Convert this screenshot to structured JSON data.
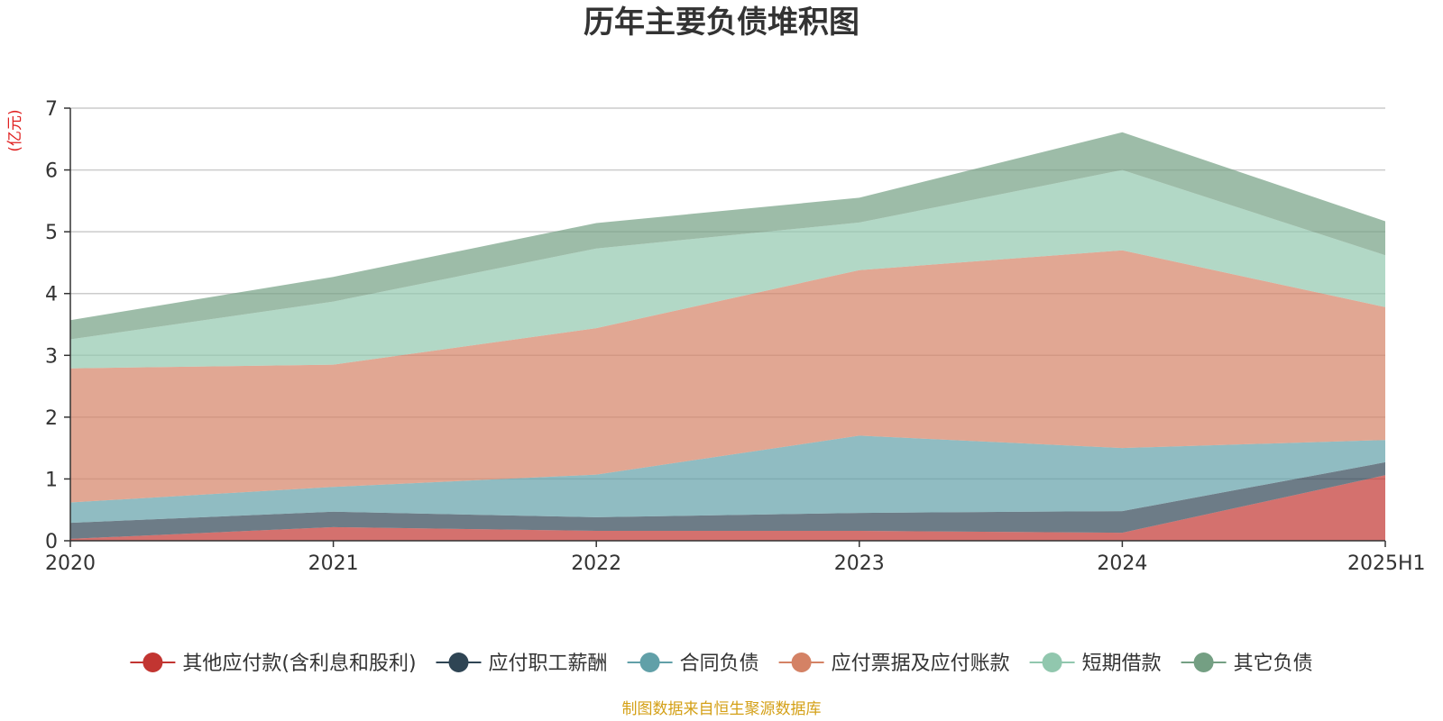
{
  "chart_data": {
    "type": "area",
    "stacked": true,
    "title": "历年主要负债堆积图",
    "unit_label": "(亿元)",
    "categories": [
      "2020",
      "2021",
      "2022",
      "2023",
      "2024",
      "2025H1"
    ],
    "ylim": [
      0,
      7
    ],
    "yticks": [
      "0",
      "1",
      "2",
      "3",
      "4",
      "5",
      "6",
      "7"
    ],
    "grid": true,
    "legend_position": "bottom",
    "series": [
      {
        "name": "其他应付款(含利息和股利)",
        "color": "#c23531",
        "values": [
          0.03,
          0.22,
          0.16,
          0.16,
          0.13,
          1.06
        ]
      },
      {
        "name": "应付职工薪酬",
        "color": "#2f4554",
        "values": [
          0.26,
          0.25,
          0.22,
          0.29,
          0.35,
          0.21
        ]
      },
      {
        "name": "合同负债",
        "color": "#61a0a8",
        "values": [
          0.33,
          0.4,
          0.69,
          1.25,
          1.02,
          0.36
        ]
      },
      {
        "name": "应付票据及应付账款",
        "color": "#d48265",
        "values": [
          2.17,
          1.98,
          2.37,
          2.68,
          3.2,
          2.15
        ]
      },
      {
        "name": "短期借款",
        "color": "#91c7ae",
        "values": [
          0.47,
          1.02,
          1.29,
          0.77,
          1.3,
          0.84
        ]
      },
      {
        "name": "其它负债",
        "color": "#749f83",
        "values": [
          0.31,
          0.4,
          0.41,
          0.4,
          0.61,
          0.55
        ]
      }
    ],
    "source": "制图数据来自恒生聚源数据库"
  }
}
